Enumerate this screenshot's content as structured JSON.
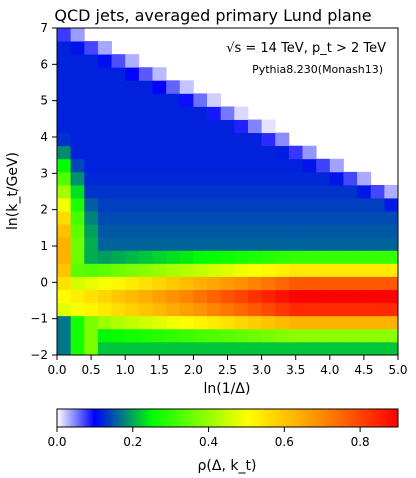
{
  "chart_data": {
    "type": "heatmap",
    "title": "QCD jets, averaged primary Lund plane",
    "xlabel": "ln(1/Δ)",
    "ylabel": "ln(k_t/GeV)",
    "xlim": [
      0.0,
      5.0
    ],
    "ylim": [
      -2,
      7
    ],
    "x_ticks": [
      "0.0",
      "0.5",
      "1.0",
      "1.5",
      "2.0",
      "2.5",
      "3.0",
      "3.5",
      "4.0",
      "4.5",
      "5.0"
    ],
    "y_ticks": [
      "−2",
      "−1",
      "0",
      "1",
      "2",
      "3",
      "4",
      "5",
      "6",
      "7"
    ],
    "annotation_energy": "√s = 14 TeV, p_t > 2 TeV",
    "annotation_generator": "Pythia8.230(Monash13)",
    "colorbar": {
      "label": "ρ(Δ, k_t)",
      "range": [
        0.0,
        0.9
      ],
      "ticks": [
        "0.0",
        "0.2",
        "0.4",
        "0.6",
        "0.8"
      ],
      "colormap": [
        "#ffffff",
        "#0000ff",
        "#00ff00",
        "#ffff00",
        "#ff0000"
      ]
    },
    "grid": false,
    "cell_count_x": 25,
    "cell_count_y": 25,
    "density_model": {
      "description": "density ρ estimated from colours; near zero above the line ln(kt) = 7.2 − 0.95·ln(1/Δ), peaking ≈0.9 near ln(kt)≈−0.4 for large ln(1/Δ) and in the low-Δ band",
      "upper_edge_intercept": 7.2,
      "upper_edge_slope": -0.95,
      "peak": 0.9
    }
  }
}
